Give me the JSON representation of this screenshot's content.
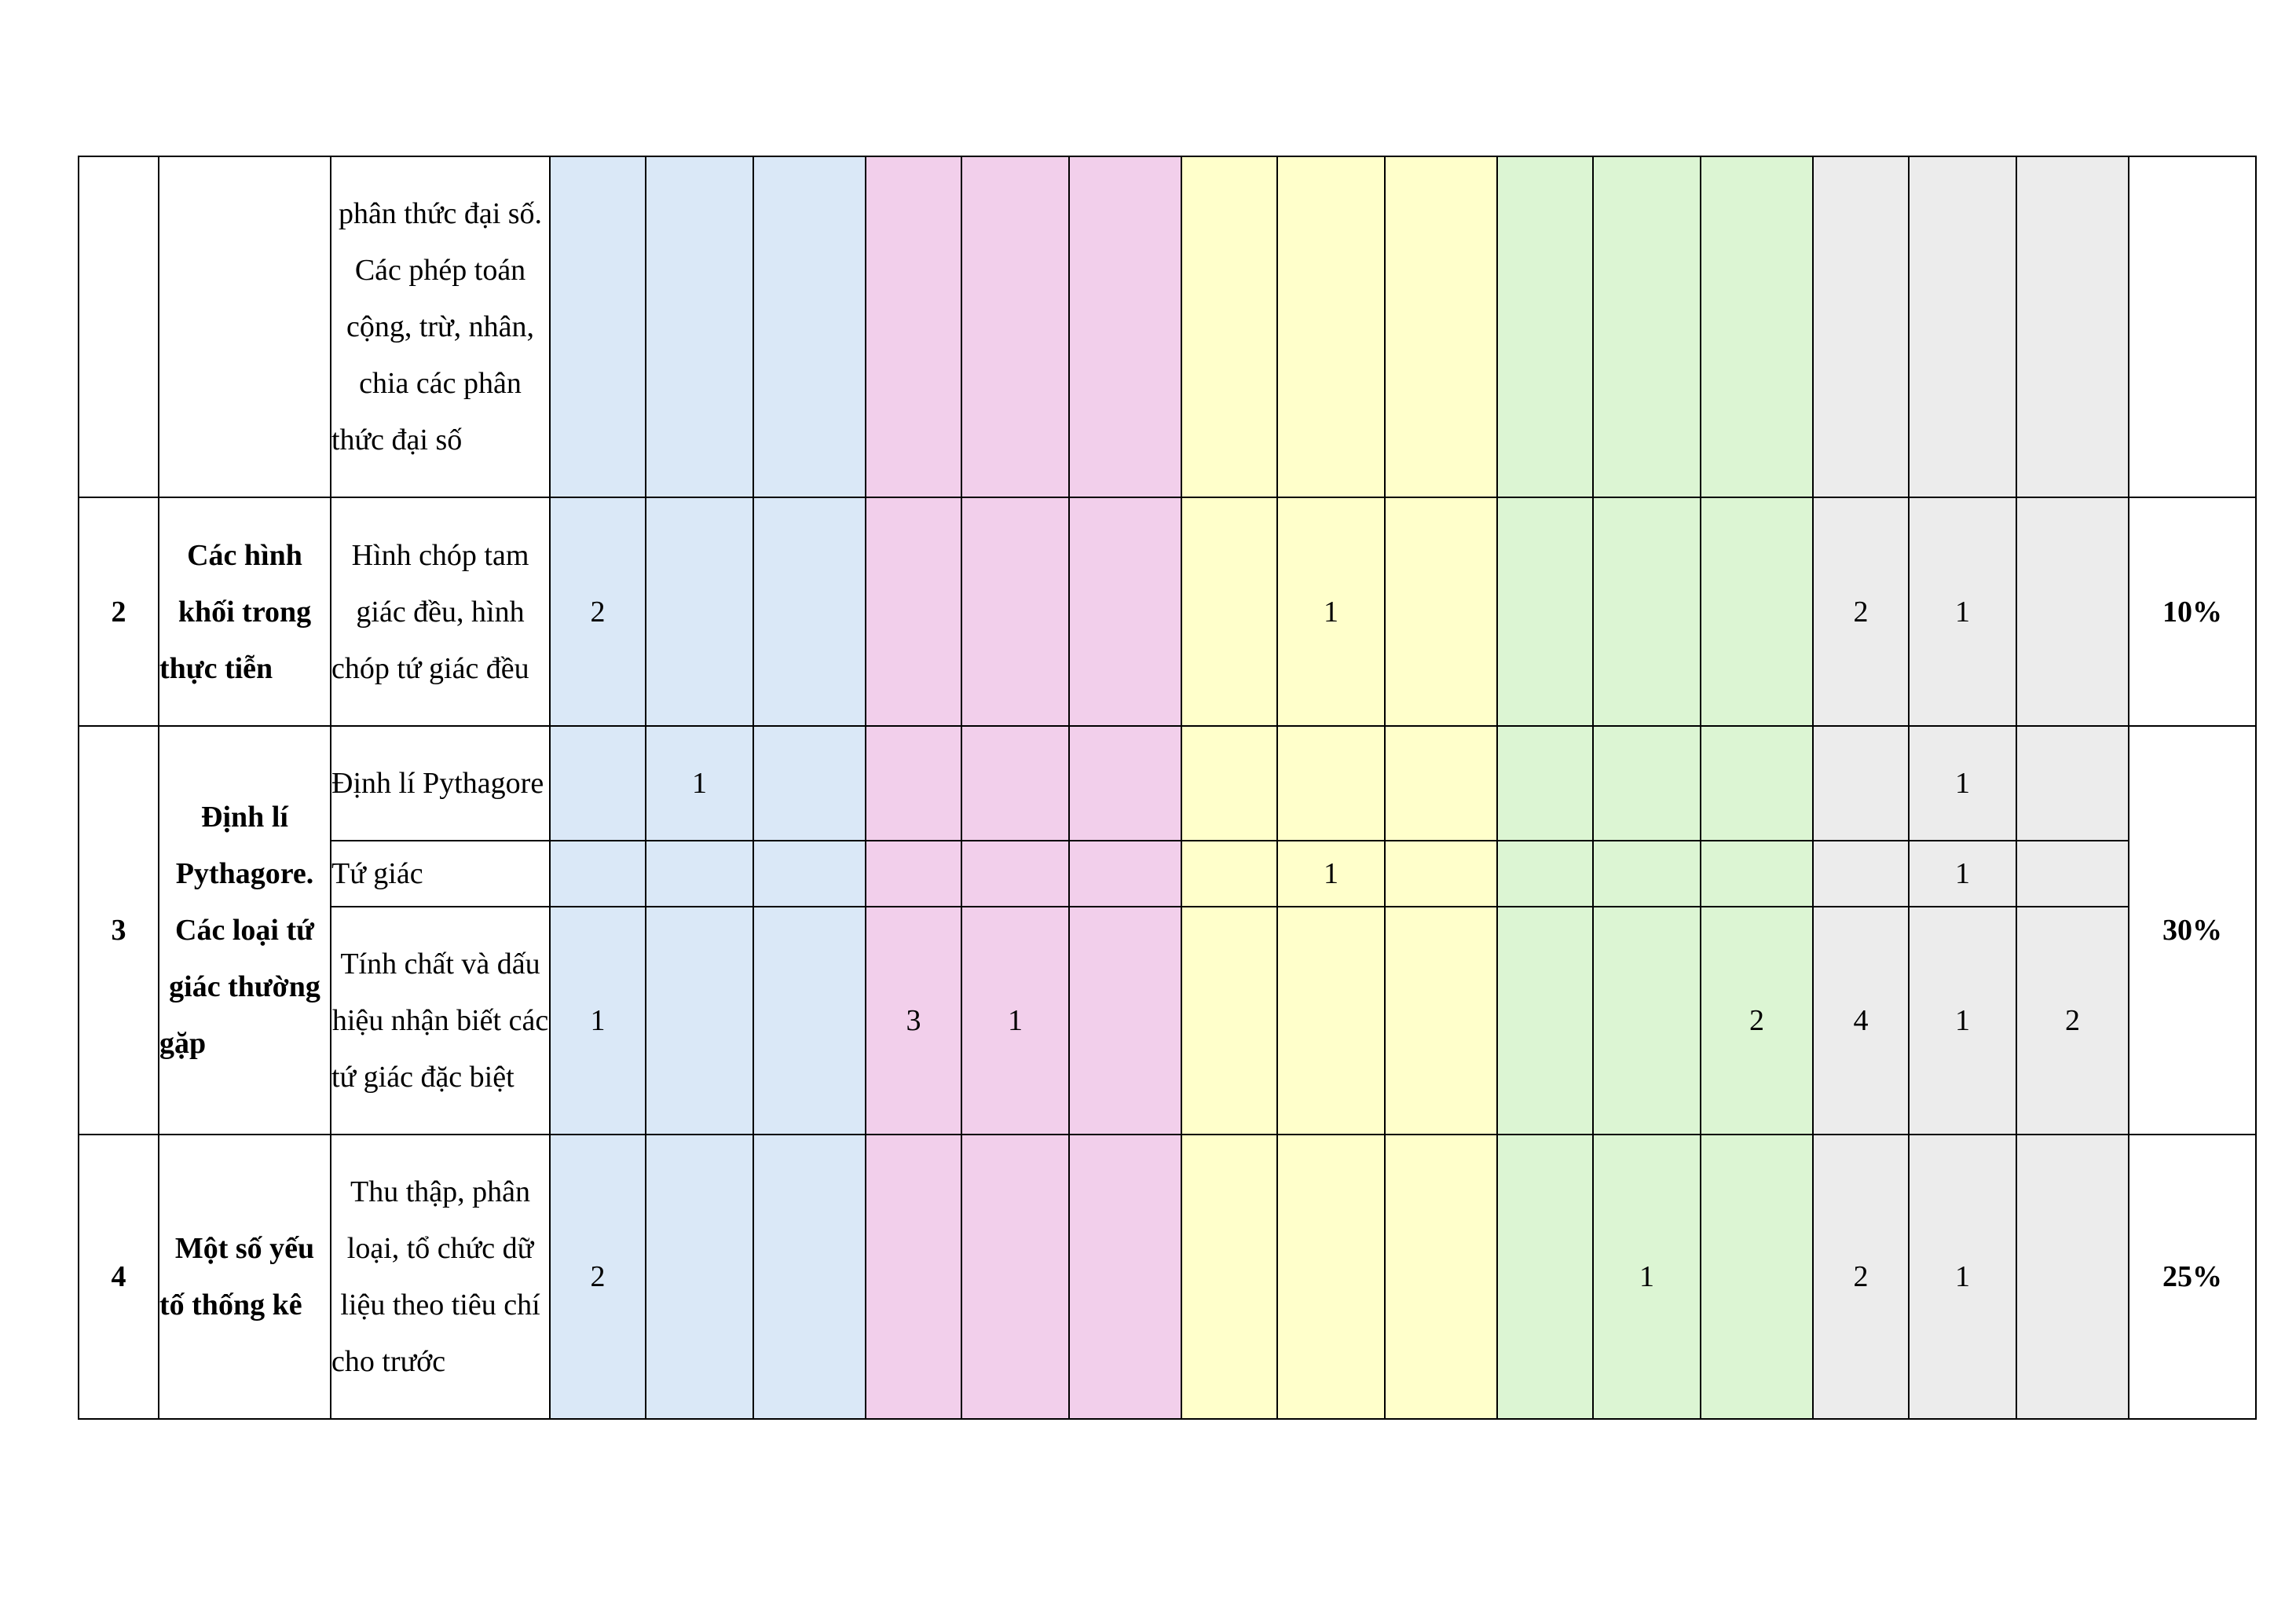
{
  "columns": {
    "groups": [
      {
        "name": "group-1",
        "color": "#dae8f7"
      },
      {
        "name": "group-2",
        "color": "#f2cfeb"
      },
      {
        "name": "group-3",
        "color": "#ffffcb"
      },
      {
        "name": "group-4",
        "color": "#dcf5d3"
      },
      {
        "name": "group-5",
        "color": "#ececec"
      }
    ]
  },
  "rows": [
    {
      "stt": "",
      "topic": "",
      "unit": "phân thức đại số. Các phép toán cộng, trừ, nhân, chia các phân thức đại số",
      "cells": [
        "",
        "",
        "",
        "",
        "",
        "",
        "",
        "",
        "",
        "",
        "",
        "",
        "",
        "",
        ""
      ],
      "percent": ""
    },
    {
      "stt": "2",
      "topic": "Các hình khối trong thực tiễn",
      "unit": "Hình chóp tam giác đều, hình chóp tứ giác đều",
      "cells": [
        "2",
        "",
        "",
        "",
        "",
        "",
        "",
        "1",
        "",
        "",
        "",
        "",
        "2",
        "1",
        ""
      ],
      "percent": "10%"
    },
    {
      "stt": "3",
      "topic": "Định lí Pythagore. Các loại tứ giác thường gặp",
      "percent": "30%",
      "subrows": [
        {
          "unit": "Định lí Pythagore",
          "cells": [
            "",
            "1",
            "",
            "",
            "",
            "",
            "",
            "",
            "",
            "",
            "",
            "",
            "",
            "1",
            ""
          ]
        },
        {
          "unit": "Tứ giác",
          "cells": [
            "",
            "",
            "",
            "",
            "",
            "",
            "",
            "1",
            "",
            "",
            "",
            "",
            "",
            "1",
            ""
          ]
        },
        {
          "unit": "Tính chất và dấu hiệu nhận biết các tứ giác đặc biệt",
          "cells": [
            "1",
            "",
            "",
            "3",
            "1",
            "",
            "",
            "",
            "",
            "",
            "",
            "2",
            "4",
            "1",
            "2"
          ]
        }
      ]
    },
    {
      "stt": "4",
      "topic": "Một số yếu tố thống kê",
      "unit": "Thu thập, phân loại, tổ chức dữ liệu theo tiêu chí cho trước",
      "cells": [
        "2",
        "",
        "",
        "",
        "",
        "",
        "",
        "",
        "",
        "",
        "1",
        "",
        "2",
        "1",
        ""
      ],
      "percent": "25%"
    }
  ]
}
